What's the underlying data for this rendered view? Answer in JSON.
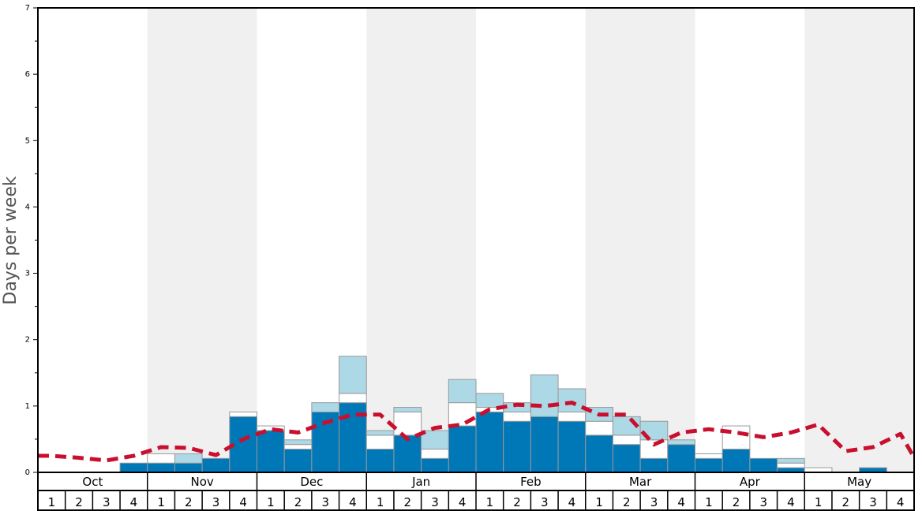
{
  "chart_data": {
    "type": "bar",
    "stacked": true,
    "title": "",
    "xlabel": "",
    "ylabel": "Days per week",
    "ylim": [
      0,
      7
    ],
    "yticks": [
      0,
      1,
      2,
      3,
      4,
      5,
      6,
      7
    ],
    "months": [
      "Oct",
      "Nov",
      "Dec",
      "Jan",
      "Feb",
      "Mar",
      "Apr",
      "May"
    ],
    "week_labels": [
      "1",
      "2",
      "3",
      "4"
    ],
    "shaded_months": [
      "Nov",
      "Jan",
      "Mar",
      "May"
    ],
    "colors": {
      "bottom": "#0077b6",
      "middle": "#ffffff",
      "top": "#add8e6",
      "bar_stroke": "#999999",
      "line": "#c8102e",
      "shade": "#f0f0f0"
    },
    "series": [
      {
        "segment": "bottom",
        "values": [
          0,
          0,
          0,
          0.14,
          0.14,
          0.14,
          0.21,
          0.84,
          0.63,
          0.35,
          0.91,
          1.05,
          0.35,
          0.56,
          0.21,
          0.7,
          0.91,
          0.77,
          0.84,
          0.77,
          0.56,
          0.42,
          0.21,
          0.42,
          0.21,
          0.35,
          0.21,
          0.07,
          0,
          0,
          0.07,
          0
        ]
      },
      {
        "segment": "middle",
        "values": [
          0,
          0,
          0,
          0,
          0.14,
          0,
          0,
          0.07,
          0.07,
          0.07,
          0,
          0.14,
          0.21,
          0.35,
          0.14,
          0.35,
          0.07,
          0.14,
          0,
          0.14,
          0.21,
          0.14,
          0.28,
          0,
          0.07,
          0.35,
          0,
          0.07,
          0.07,
          0,
          0,
          0
        ]
      },
      {
        "segment": "top",
        "values": [
          0,
          0,
          0,
          0,
          0,
          0.14,
          0,
          0,
          0,
          0.07,
          0.14,
          0.56,
          0.07,
          0.07,
          0.28,
          0.35,
          0.21,
          0.14,
          0.63,
          0.35,
          0.21,
          0.28,
          0.28,
          0.07,
          0,
          0,
          0,
          0.07,
          0,
          0,
          0,
          0
        ]
      },
      {
        "segment": "average-line",
        "values": [
          0.25,
          0.22,
          0.18,
          0.25,
          0.38,
          0.37,
          0.26,
          0.5,
          0.65,
          0.6,
          0.75,
          0.87,
          0.87,
          0.5,
          0.67,
          0.72,
          0.95,
          1.02,
          1.0,
          1.05,
          0.87,
          0.87,
          0.42,
          0.6,
          0.65,
          0.6,
          0.53,
          0.6,
          0.72,
          0.32,
          0.38,
          0.58
        ]
      }
    ]
  }
}
